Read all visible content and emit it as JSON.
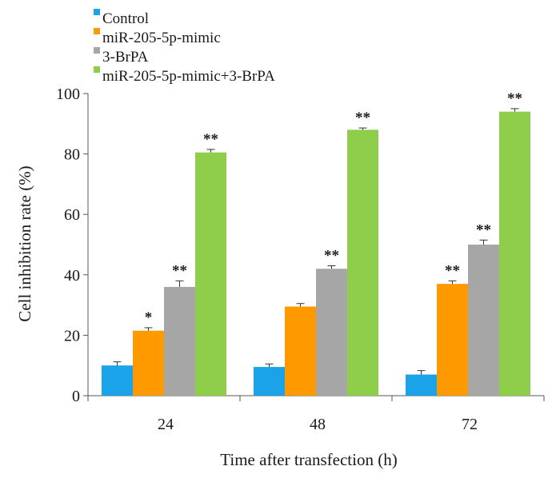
{
  "chart_data": {
    "type": "bar",
    "title": "",
    "xlabel": "Time after transfection (h)",
    "ylabel": "Cell inhibition rate (%)",
    "ylim": [
      0,
      100
    ],
    "yticks": [
      0,
      20,
      40,
      60,
      80,
      100
    ],
    "categories": [
      "24",
      "48",
      "72"
    ],
    "legend_position": "top-left",
    "grid": false,
    "series": [
      {
        "name": "Control",
        "color": "#1aa3e8",
        "values": [
          10,
          9.5,
          7
        ],
        "errors": [
          1.2,
          1.0,
          1.3
        ],
        "significance": [
          "",
          "",
          ""
        ]
      },
      {
        "name": "miR-205-5p-mimic",
        "color": "#ff9900",
        "values": [
          21.5,
          29.5,
          37
        ],
        "errors": [
          1.0,
          1.0,
          1.0
        ],
        "significance": [
          "*",
          "",
          "**"
        ]
      },
      {
        "name": "3-BrPA",
        "color": "#a6a6a6",
        "values": [
          36,
          42,
          50
        ],
        "errors": [
          2.0,
          1.0,
          1.5
        ],
        "significance": [
          "**",
          "**",
          "**"
        ]
      },
      {
        "name": "miR-205-5p-mimic+3-BrPA",
        "color": "#8fce4a",
        "values": [
          80.5,
          88,
          94
        ],
        "errors": [
          1.0,
          0.6,
          1.0
        ],
        "significance": [
          "**",
          "**",
          "**"
        ]
      }
    ]
  }
}
